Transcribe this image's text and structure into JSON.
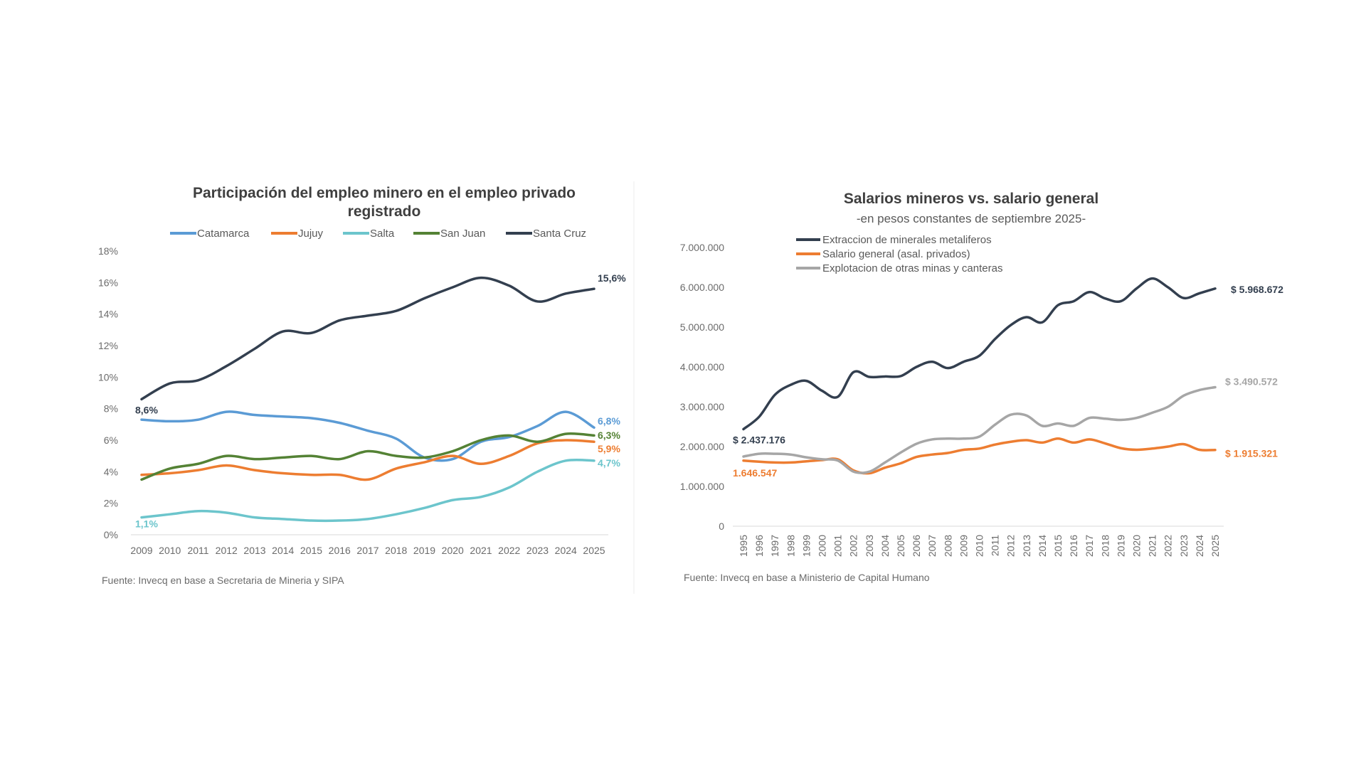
{
  "chart_data": [
    {
      "type": "line",
      "title": "Participación del empleo minero en el empleo privado registrado",
      "title_lines": [
        "Participación del empleo minero en el empleo privado",
        "registrado"
      ],
      "source": "Fuente: Invecq en base a Secretaria de Mineria y SIPA",
      "x": [
        "2009",
        "2010",
        "2011",
        "2012",
        "2013",
        "2014",
        "2015",
        "2016",
        "2017",
        "2018",
        "2019",
        "2020",
        "2021",
        "2022",
        "2023",
        "2024",
        "2025"
      ],
      "ylim": [
        0,
        18
      ],
      "yticks": [
        0,
        2,
        4,
        6,
        8,
        10,
        12,
        14,
        16,
        18
      ],
      "ytick_labels": [
        "0%",
        "2%",
        "4%",
        "6%",
        "8%",
        "10%",
        "12%",
        "14%",
        "16%",
        "18%"
      ],
      "legend": "top",
      "grid": false,
      "series": [
        {
          "name": "Catamarca",
          "color": "#5b9bd5",
          "values": [
            7.3,
            7.2,
            7.3,
            7.8,
            7.6,
            7.5,
            7.4,
            7.1,
            6.6,
            6.1,
            4.9,
            4.8,
            5.9,
            6.2,
            6.9,
            7.8,
            6.8
          ],
          "end_label": "6,8%"
        },
        {
          "name": "Jujuy",
          "color": "#ed7d31",
          "values": [
            3.8,
            3.9,
            4.1,
            4.4,
            4.1,
            3.9,
            3.8,
            3.8,
            3.5,
            4.2,
            4.6,
            5.0,
            4.5,
            5.0,
            5.8,
            6.0,
            5.9
          ],
          "end_label": "5,9%"
        },
        {
          "name": "Salta",
          "color": "#6cc5cc",
          "values": [
            1.1,
            1.3,
            1.5,
            1.4,
            1.1,
            1.0,
            0.9,
            0.9,
            1.0,
            1.3,
            1.7,
            2.2,
            2.4,
            3.0,
            4.0,
            4.7,
            4.7
          ],
          "start_label": "1,1%",
          "end_label": "4,7%"
        },
        {
          "name": "San Juan",
          "color": "#548235",
          "values": [
            3.5,
            4.2,
            4.5,
            5.0,
            4.8,
            4.9,
            5.0,
            4.8,
            5.3,
            5.0,
            4.9,
            5.3,
            6.0,
            6.3,
            5.9,
            6.4,
            6.3
          ],
          "end_label": "6,3%"
        },
        {
          "name": "Santa Cruz",
          "color": "#333f4f",
          "values": [
            8.6,
            9.6,
            9.8,
            10.7,
            11.8,
            12.9,
            12.8,
            13.6,
            13.9,
            14.2,
            15.0,
            15.7,
            16.3,
            15.8,
            14.8,
            15.3,
            15.6
          ],
          "start_label": "8,6%",
          "end_label": "15,6%"
        }
      ]
    },
    {
      "type": "line",
      "title": "Salarios mineros vs. salario general",
      "subtitle": "-en pesos constantes de septiembre 2025-",
      "source": "Fuente: Invecq en base a Ministerio de Capital Humano",
      "x": [
        "1995",
        "1996",
        "1997",
        "1998",
        "1999",
        "2000",
        "2001",
        "2002",
        "2003",
        "2004",
        "2005",
        "2006",
        "2007",
        "2008",
        "2009",
        "2010",
        "2011",
        "2012",
        "2013",
        "2014",
        "2015",
        "2016",
        "2017",
        "2018",
        "2019",
        "2020",
        "2021",
        "2022",
        "2023",
        "2024",
        "2025"
      ],
      "ylim": [
        0,
        7000000
      ],
      "yticks": [
        0,
        1000000,
        2000000,
        3000000,
        4000000,
        5000000,
        6000000,
        7000000
      ],
      "ytick_labels": [
        "0",
        "1.000.000",
        "2.000.000",
        "3.000.000",
        "4.000.000",
        "5.000.000",
        "6.000.000",
        "7.000.000"
      ],
      "legend": "top-left",
      "grid": false,
      "series": [
        {
          "name": "Extraccion de minerales metaliferos",
          "color": "#333f4f",
          "values": [
            2437176,
            2750000,
            3300000,
            3550000,
            3650000,
            3400000,
            3250000,
            3870000,
            3750000,
            3760000,
            3770000,
            4000000,
            4130000,
            3970000,
            4130000,
            4280000,
            4700000,
            5050000,
            5250000,
            5120000,
            5550000,
            5650000,
            5880000,
            5720000,
            5650000,
            5970000,
            6220000,
            6000000,
            5730000,
            5850000,
            5968672
          ],
          "start_label": "$ 2.437.176",
          "end_label": "$ 5.968.672"
        },
        {
          "name": "Salario general (asal. privados)",
          "color": "#ed7d31",
          "values": [
            1646547,
            1620000,
            1600000,
            1600000,
            1630000,
            1660000,
            1680000,
            1400000,
            1330000,
            1470000,
            1580000,
            1740000,
            1800000,
            1840000,
            1920000,
            1950000,
            2050000,
            2120000,
            2160000,
            2100000,
            2200000,
            2100000,
            2180000,
            2080000,
            1960000,
            1920000,
            1950000,
            2000000,
            2060000,
            1920000,
            1915321
          ],
          "start_label": "1.646.547",
          "end_label": "$ 1.915.321"
        },
        {
          "name": "Explotacion de otras minas y canteras",
          "color": "#a6a6a6",
          "values": [
            1750000,
            1820000,
            1820000,
            1800000,
            1730000,
            1680000,
            1650000,
            1370000,
            1370000,
            1600000,
            1850000,
            2070000,
            2180000,
            2200000,
            2200000,
            2250000,
            2550000,
            2800000,
            2780000,
            2520000,
            2580000,
            2520000,
            2720000,
            2700000,
            2670000,
            2720000,
            2850000,
            3000000,
            3280000,
            3420000,
            3490572
          ],
          "end_label": "$ 3.490.572"
        }
      ]
    }
  ]
}
